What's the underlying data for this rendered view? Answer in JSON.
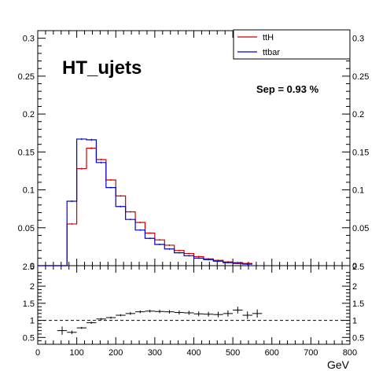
{
  "chart_data": {
    "type": "histogram",
    "title": "HT_ujets",
    "annotation": "Sep = 0.93 %",
    "xlabel": "GeV",
    "xlim": [
      0,
      800
    ],
    "bin_edges": [
      0,
      50,
      75,
      100,
      125,
      150,
      175,
      200,
      225,
      250,
      275,
      300,
      325,
      350,
      375,
      400,
      425,
      450,
      475,
      500,
      525,
      550,
      575,
      600,
      625,
      650,
      675,
      700,
      725,
      750,
      775,
      800
    ],
    "x_ticks": [
      0,
      100,
      200,
      300,
      400,
      500,
      600,
      700,
      800
    ],
    "x_tick_labels": [
      "0",
      "100",
      "200",
      "300",
      "400",
      "500",
      "600",
      "700",
      "800"
    ],
    "upper": {
      "ylim": [
        0,
        0.31
      ],
      "y_ticks": [
        0.05,
        0.1,
        0.15,
        0.2,
        0.25,
        0.3
      ],
      "y_tick_labels": [
        "0.05",
        "0.1",
        "0.15",
        "0.2",
        "0.25",
        "0.3"
      ],
      "bottom_label": "0",
      "series": [
        {
          "name": "ttH",
          "color": "#cc0000",
          "values": [
            0,
            0,
            0.055,
            0.128,
            0.155,
            0.14,
            0.113,
            0.092,
            0.071,
            0.057,
            0.043,
            0.034,
            0.027,
            0.02,
            0.016,
            0.012,
            0.009,
            0.007,
            0.005,
            0.004,
            0.003
          ]
        },
        {
          "name": "ttbar",
          "color": "#0000cc",
          "values": [
            0,
            0,
            0.085,
            0.167,
            0.166,
            0.136,
            0.103,
            0.078,
            0.061,
            0.047,
            0.036,
            0.028,
            0.022,
            0.017,
            0.013,
            0.01,
            0.008,
            0.006,
            0.004,
            0.003,
            0.002
          ]
        }
      ]
    },
    "ratio": {
      "ylim": [
        0.3,
        2.6
      ],
      "y_ticks": [
        0.5,
        1,
        1.5,
        2
      ],
      "y_tick_labels": [
        "0.5",
        "1",
        "1.5",
        "2"
      ],
      "top_label": "2.5",
      "reference_line": 1,
      "values": [
        0.7,
        0.65,
        0.78,
        0.93,
        1.04,
        1.08,
        1.15,
        1.2,
        1.25,
        1.27,
        1.26,
        1.25,
        1.23,
        1.22,
        1.19,
        1.18,
        1.17,
        1.2,
        1.3,
        1.15,
        1.2
      ],
      "errors": [
        0.12,
        0.05,
        0.03,
        0.03,
        0.03,
        0.03,
        0.03,
        0.04,
        0.04,
        0.04,
        0.05,
        0.05,
        0.06,
        0.06,
        0.07,
        0.07,
        0.08,
        0.09,
        0.1,
        0.11,
        0.12
      ]
    }
  }
}
